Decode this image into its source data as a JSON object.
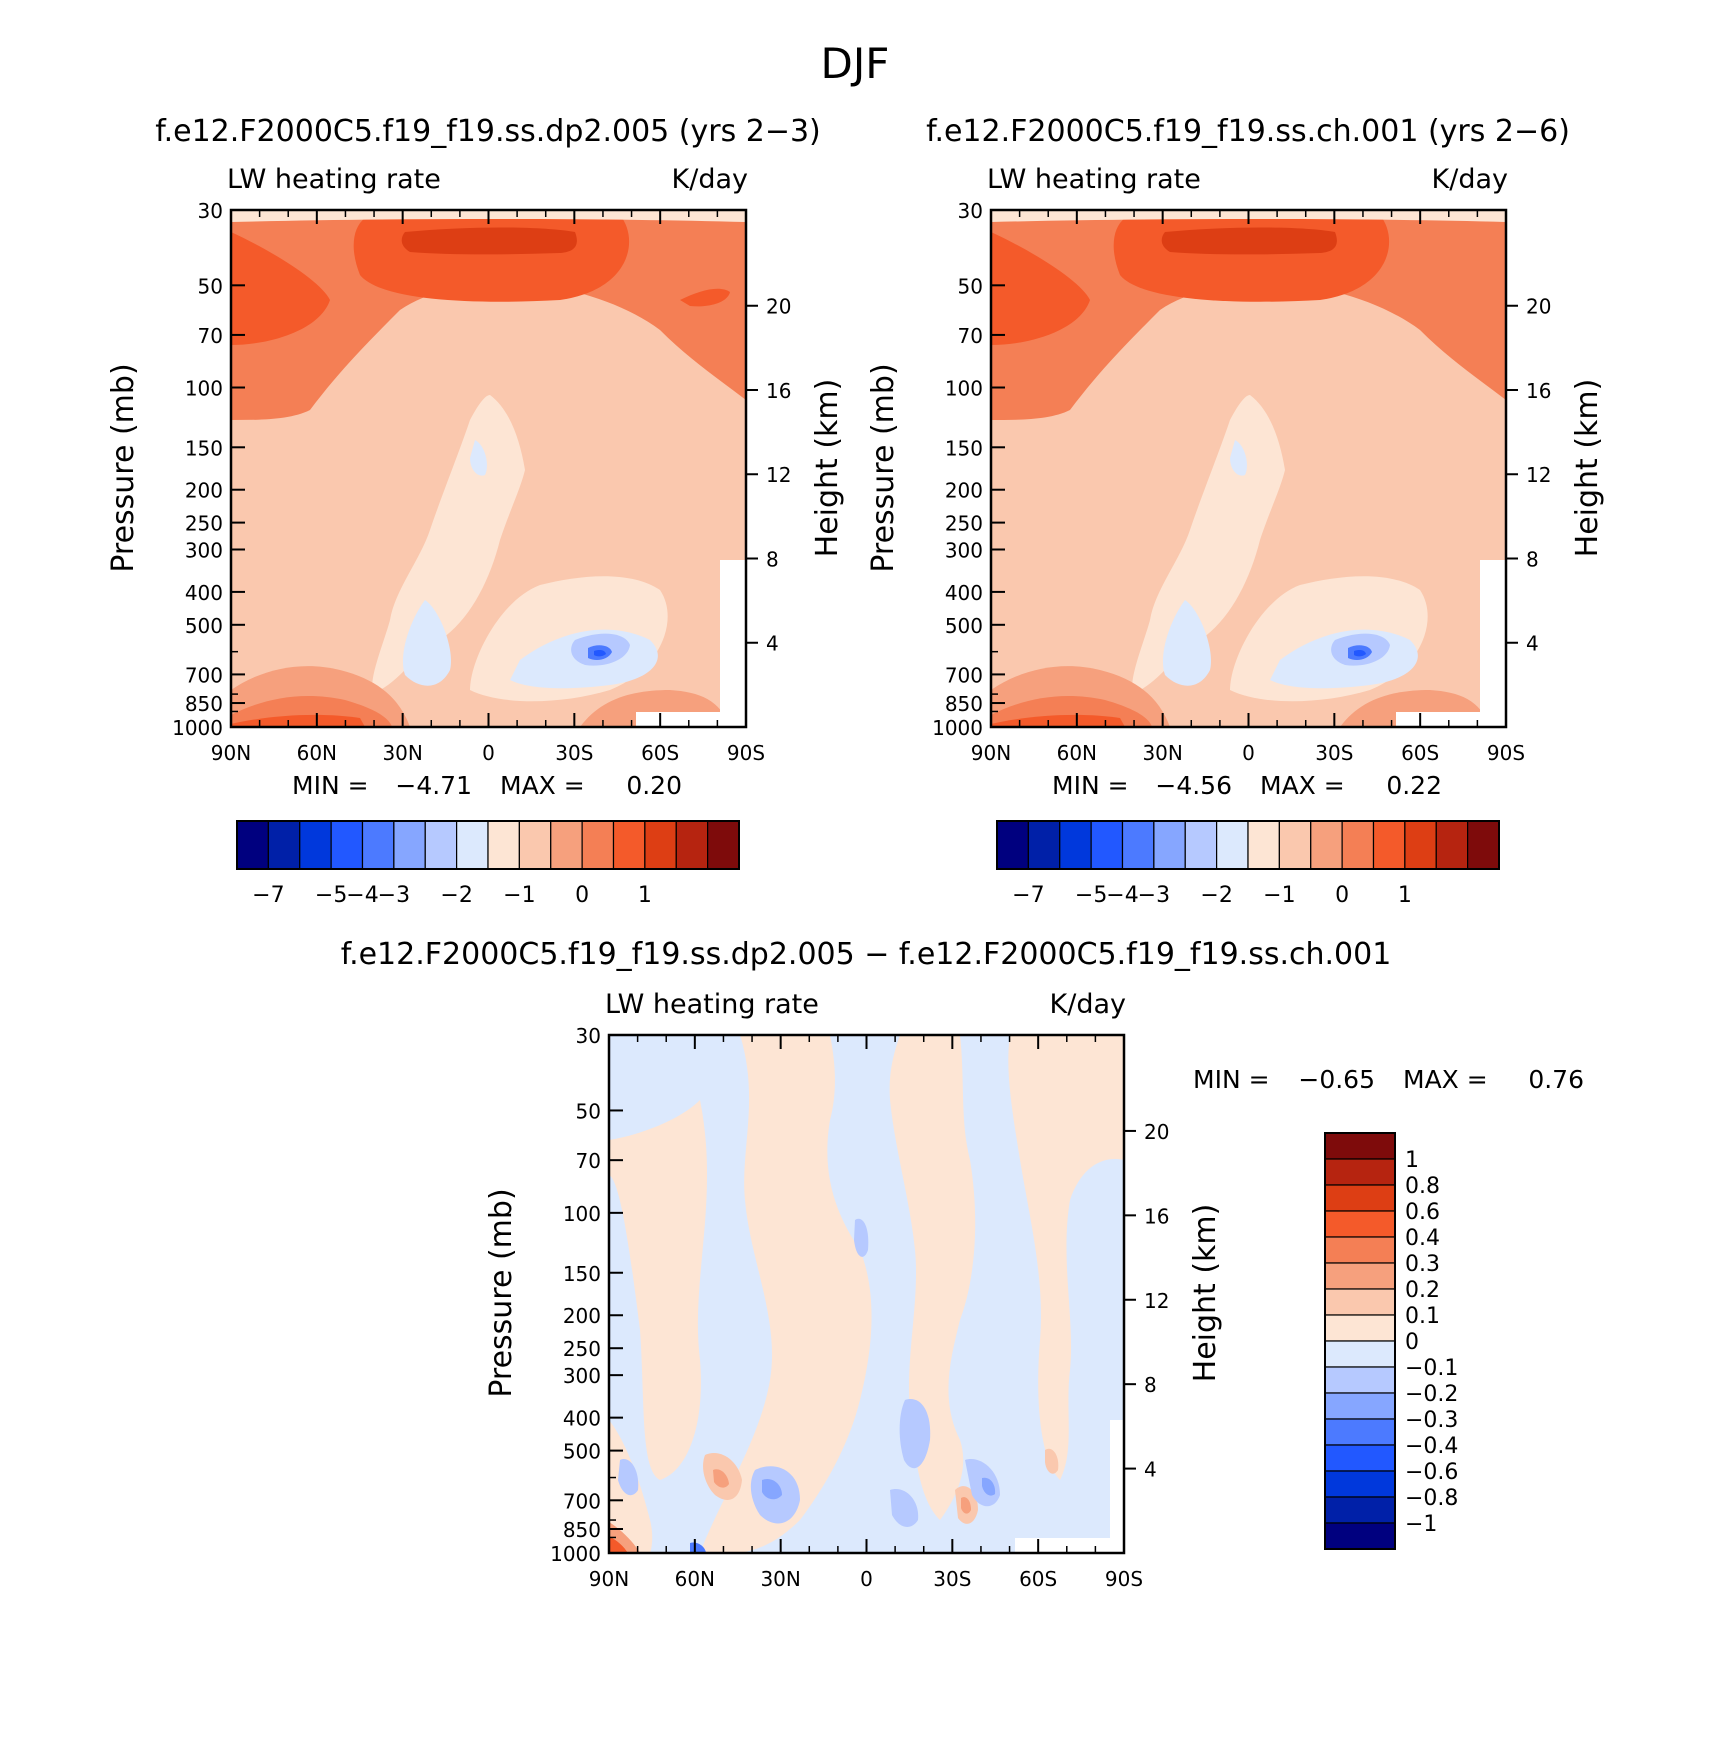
{
  "figure_title": "DJF",
  "colors": {
    "abs_scale": [
      "#00007f",
      "#0020a8",
      "#0038dc",
      "#2258ff",
      "#4c7aff",
      "#86a6ff",
      "#b6c9ff",
      "#dce9fd",
      "#fde5d4",
      "#fac8ae",
      "#f6a07d",
      "#f47f55",
      "#f45a2a",
      "#dd3e14",
      "#b62410",
      "#7e0b0b"
    ],
    "diff_scale": [
      "#00007f",
      "#0020a8",
      "#0038dc",
      "#2258ff",
      "#4c7aff",
      "#86a6ff",
      "#b6c9ff",
      "#dce9fd",
      "#fde5d4",
      "#fac8ae",
      "#f6a07d",
      "#f47f55",
      "#f45a2a",
      "#dd3e14",
      "#b62410",
      "#7e0b0b"
    ]
  },
  "chart_data": [
    {
      "type": "heatmap",
      "title": "f.e12.F2000C5.f19_f19.ss.dp2.005 (yrs 2-3)",
      "left_label": "LW heating rate",
      "right_label": "K/day",
      "xlabel": "",
      "ylabel": "Pressure (mb)",
      "y2label": "Height (km)",
      "x_ticks": [
        "90N",
        "60N",
        "30N",
        "0",
        "30S",
        "60S",
        "90S"
      ],
      "y_ticks": [
        "30",
        "50",
        "70",
        "100",
        "150",
        "200",
        "250",
        "300",
        "400",
        "500",
        "700",
        "850",
        "1000"
      ],
      "y2_ticks": [
        "20",
        "16",
        "12",
        "8",
        "4"
      ],
      "y_scale": "log",
      "min_label": "MIN =",
      "min": "-4.71",
      "max_label": "MAX =",
      "max": "0.20",
      "colorbar_labels": [
        "-7",
        "-5",
        "-4",
        "-3",
        "-2",
        "-1",
        "0",
        "1"
      ]
    },
    {
      "type": "heatmap",
      "title": "f.e12.F2000C5.f19_f19.ss.ch.001 (yrs 2-6)",
      "left_label": "LW heating rate",
      "right_label": "K/day",
      "xlabel": "",
      "ylabel": "Pressure (mb)",
      "y2label": "Height (km)",
      "x_ticks": [
        "90N",
        "60N",
        "30N",
        "0",
        "30S",
        "60S",
        "90S"
      ],
      "y_ticks": [
        "30",
        "50",
        "70",
        "100",
        "150",
        "200",
        "250",
        "300",
        "400",
        "500",
        "700",
        "850",
        "1000"
      ],
      "y2_ticks": [
        "20",
        "16",
        "12",
        "8",
        "4"
      ],
      "y_scale": "log",
      "min_label": "MIN =",
      "min": "-4.56",
      "max_label": "MAX =",
      "max": "0.22",
      "colorbar_labels": [
        "-7",
        "-5",
        "-4",
        "-3",
        "-2",
        "-1",
        "0",
        "1"
      ]
    },
    {
      "type": "heatmap",
      "title": "f.e12.F2000C5.f19_f19.ss.dp2.005 - f.e12.F2000C5.f19_f19.ss.ch.001",
      "left_label": "LW heating rate",
      "right_label": "K/day",
      "xlabel": "",
      "ylabel": "Pressure (mb)",
      "y2label": "Height (km)",
      "x_ticks": [
        "90N",
        "60N",
        "30N",
        "0",
        "30S",
        "60S",
        "90S"
      ],
      "y_ticks": [
        "30",
        "50",
        "70",
        "100",
        "150",
        "200",
        "250",
        "300",
        "400",
        "500",
        "700",
        "850",
        "1000"
      ],
      "y2_ticks": [
        "20",
        "16",
        "12",
        "8",
        "4"
      ],
      "y_scale": "log",
      "min_label": "MIN =",
      "min": "-0.65",
      "max_label": "MAX =",
      "max": "0.76",
      "colorbar_labels": [
        "1",
        "0.8",
        "0.6",
        "0.4",
        "0.3",
        "0.2",
        "0.1",
        "0",
        "-0.1",
        "-0.2",
        "-0.3",
        "-0.4",
        "-0.6",
        "-0.8",
        "-1"
      ]
    }
  ]
}
